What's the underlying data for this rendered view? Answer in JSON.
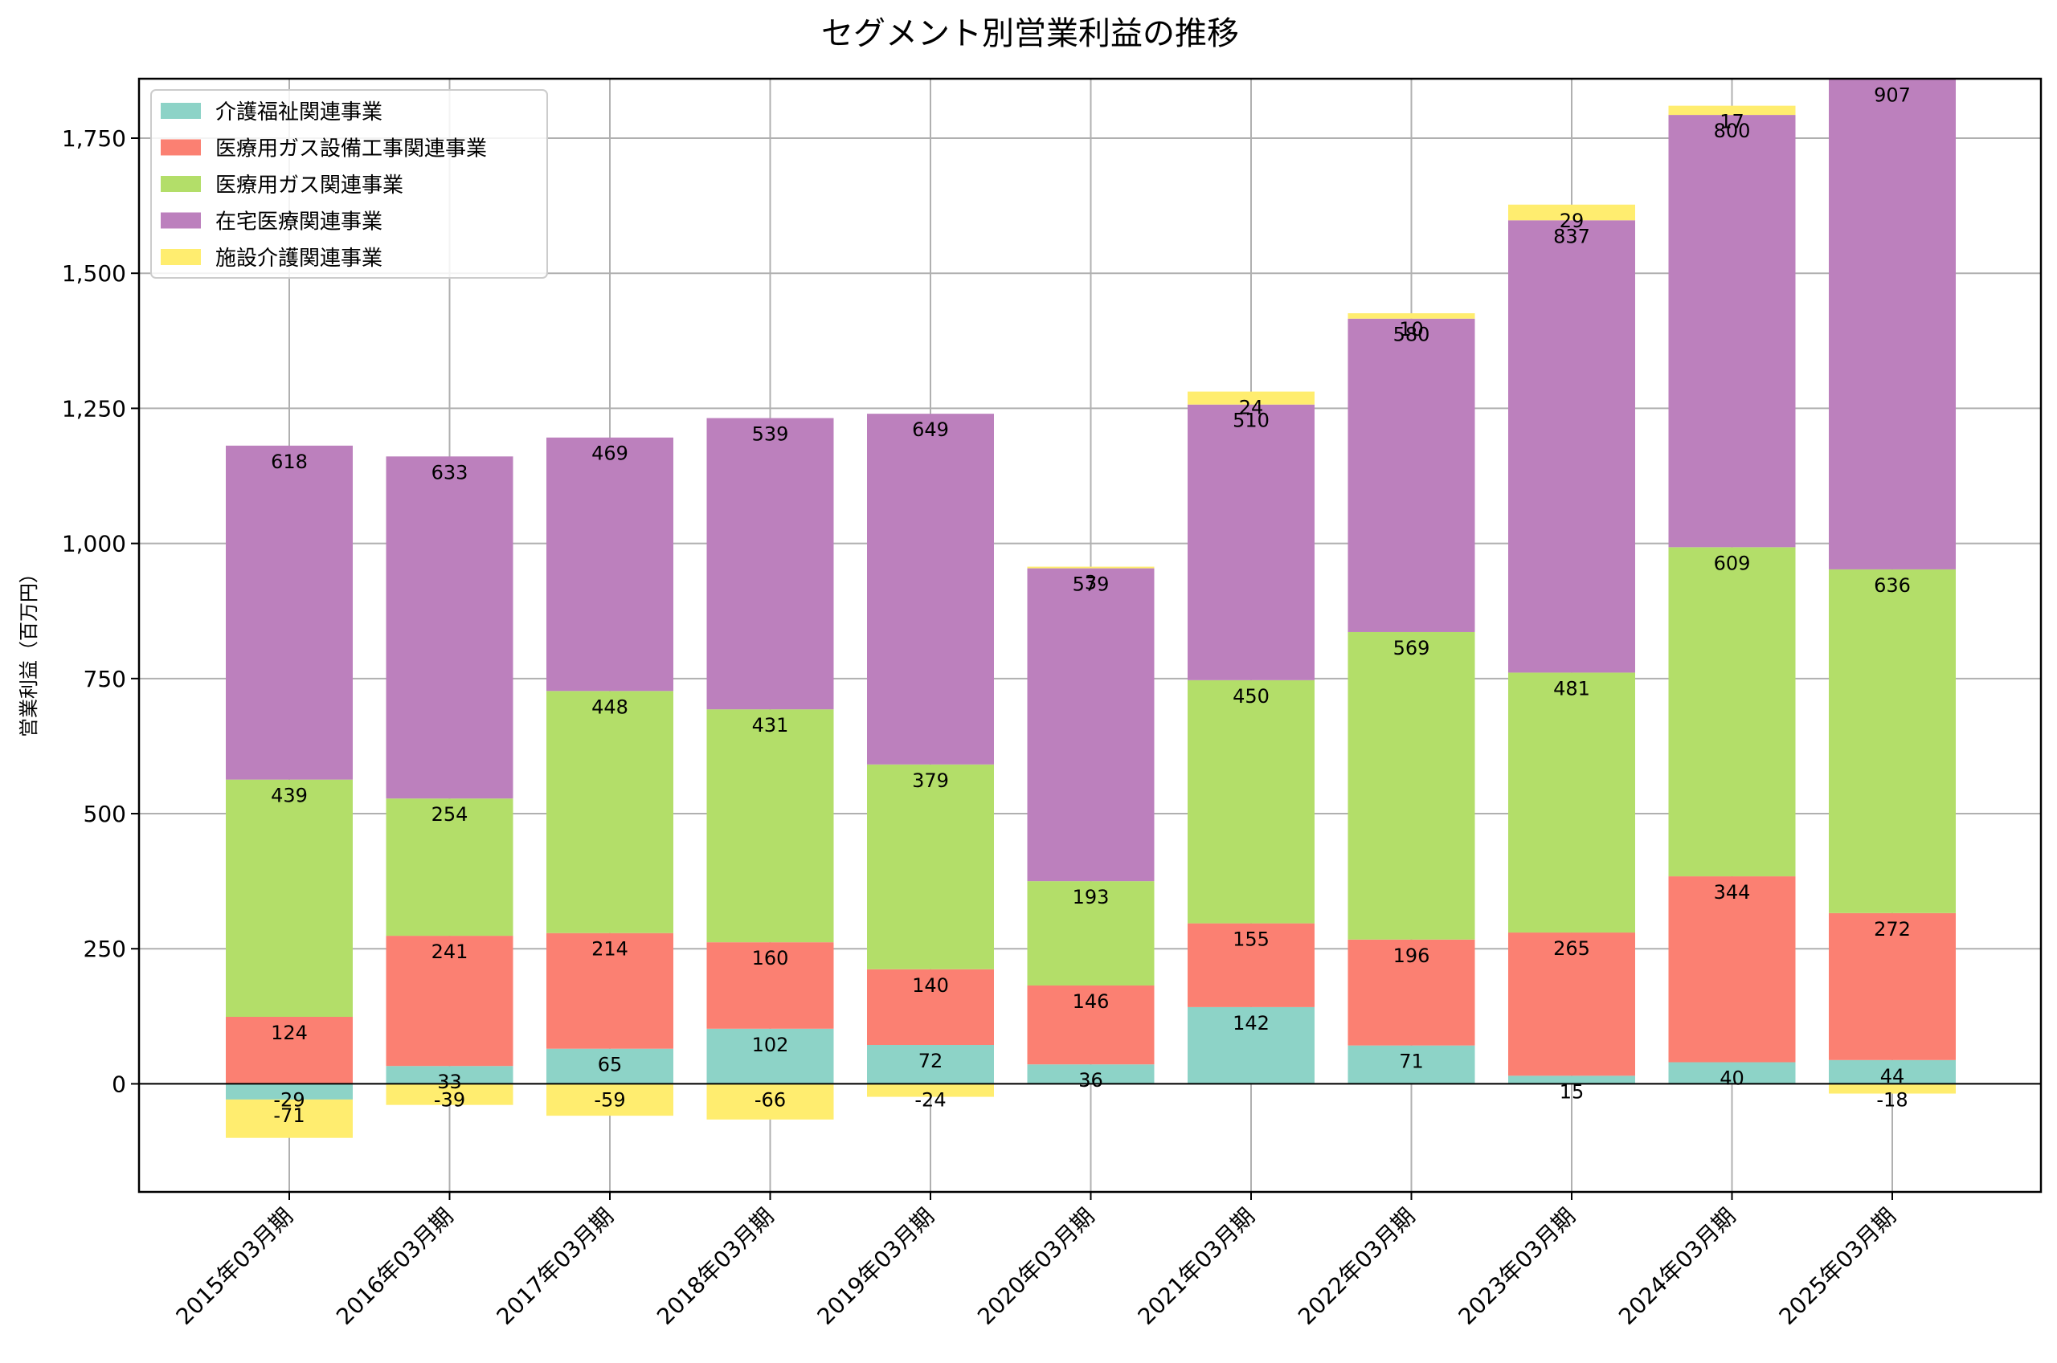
{
  "chart_data": {
    "type": "bar",
    "stacked": true,
    "title": "セグメント別営業利益の推移",
    "xlabel": "",
    "ylabel": "営業利益（百万円）",
    "ylim": [
      -200,
      1860
    ],
    "yticks": [
      0,
      250,
      500,
      750,
      1000,
      1250,
      1500,
      1750
    ],
    "ytick_labels": [
      "0",
      "250",
      "500",
      "750",
      "1,000",
      "1,250",
      "1,500",
      "1,750"
    ],
    "grid": true,
    "legend_position": "top-left",
    "categories": [
      "2015年03月期",
      "2016年03月期",
      "2017年03月期",
      "2018年03月期",
      "2019年03月期",
      "2020年03月期",
      "2021年03月期",
      "2022年03月期",
      "2023年03月期",
      "2024年03月期",
      "2025年03月期"
    ],
    "series": [
      {
        "name": "介護福祉関連事業",
        "color": "#8dd3c7",
        "values": [
          -29,
          33,
          65,
          102,
          72,
          36,
          142,
          71,
          15,
          40,
          44
        ]
      },
      {
        "name": "医療用ガス設備工事関連事業",
        "color": "#fb8072",
        "values": [
          124,
          241,
          214,
          160,
          140,
          146,
          155,
          196,
          265,
          344,
          272
        ]
      },
      {
        "name": "医療用ガス関連事業",
        "color": "#b3de69",
        "values": [
          439,
          254,
          448,
          431,
          379,
          193,
          450,
          569,
          481,
          609,
          636
        ]
      },
      {
        "name": "在宅医療関連事業",
        "color": "#bc80bd",
        "values": [
          618,
          633,
          469,
          539,
          649,
          579,
          510,
          580,
          837,
          800,
          907
        ]
      },
      {
        "name": "施設介護関連事業",
        "color": "#ffed6f",
        "values": [
          -71,
          -39,
          -59,
          -66,
          -24,
          3,
          24,
          10,
          29,
          17,
          -18
        ]
      }
    ]
  }
}
